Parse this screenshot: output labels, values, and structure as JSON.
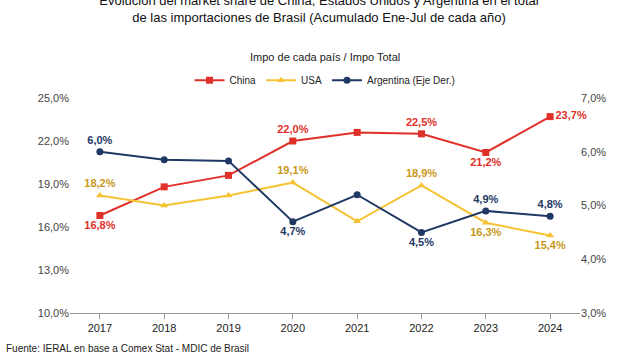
{
  "chart_data": {
    "type": "line",
    "title": "Evolución del market share de China, Estados Unidos y Argentina en el total de las importaciones de Brasil (Acumulado Ene-Jul de cada año)",
    "subtitle": "Impo de cada país / Impo Total",
    "source": "Fuente: IERAL en base a Comex Stat - MDIC de Brasil",
    "categories": [
      "2017",
      "2018",
      "2019",
      "2020",
      "2021",
      "2022",
      "2023",
      "2024"
    ],
    "series": [
      {
        "name": "China",
        "color": "#e0302a",
        "marker": "square",
        "values": [
          16.8,
          18.8,
          19.6,
          22.0,
          22.6,
          22.5,
          21.2,
          23.7
        ],
        "value_labels": [
          "16,8%",
          null,
          null,
          "22,0%",
          null,
          "22,5%",
          "21,2%",
          "23,7%"
        ]
      },
      {
        "name": "USA",
        "color": "#f5c333",
        "marker": "triangle",
        "values": [
          18.2,
          17.5,
          18.2,
          19.1,
          16.4,
          18.9,
          16.3,
          15.4
        ],
        "value_labels": [
          "18,2%",
          null,
          null,
          "19,1%",
          null,
          "18,9%",
          "16,3%",
          "15,4%"
        ]
      },
      {
        "name": "Argentina (Eje Der.)",
        "color": "#1f3864",
        "marker": "circle",
        "axis": "y2",
        "values": [
          6.0,
          5.85,
          5.83,
          4.7,
          5.2,
          4.5,
          4.9,
          4.8
        ],
        "value_labels": [
          "6,0%",
          null,
          null,
          "4,7%",
          null,
          "4,5%",
          "4,9%",
          "4,8%"
        ]
      }
    ],
    "ylim": [
      10,
      25
    ],
    "yticks": [
      {
        "value": 10,
        "label": "10,0%"
      },
      {
        "value": 13,
        "label": "13,0%"
      },
      {
        "value": 16,
        "label": "16,0%"
      },
      {
        "value": 19,
        "label": "19,0%"
      },
      {
        "value": 22,
        "label": "22,0%"
      },
      {
        "value": 25,
        "label": "25,0%"
      }
    ],
    "y2lim": [
      3,
      7
    ],
    "y2ticks": [
      {
        "value": 3,
        "label": "3,0%"
      },
      {
        "value": 4,
        "label": "4,0%"
      },
      {
        "value": 5,
        "label": "5,0%"
      },
      {
        "value": 6,
        "label": "6,0%"
      },
      {
        "value": 7,
        "label": "7,0%"
      }
    ],
    "grid": false,
    "legend": "top",
    "data_labels": true
  }
}
